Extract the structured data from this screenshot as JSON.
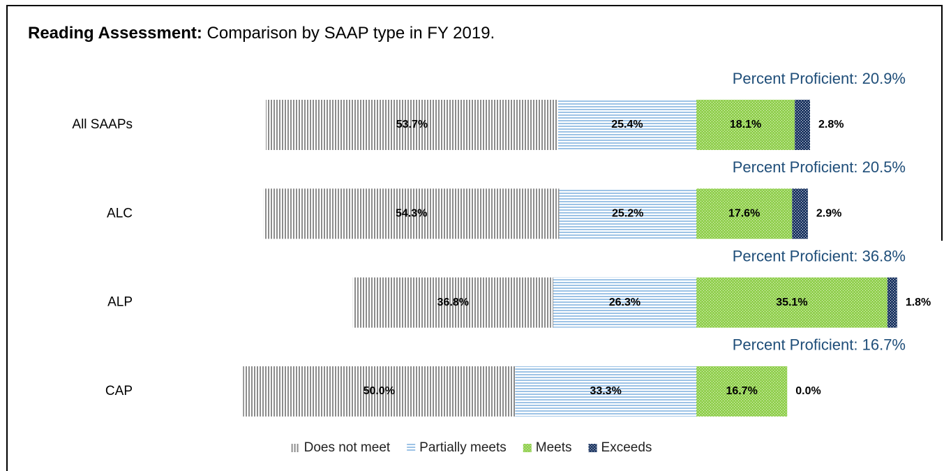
{
  "chart_data": {
    "type": "diverging_bar",
    "title": "Reading Assessment:",
    "subtitle": "Comparison by SAAP type in FY 2019.",
    "categories": [
      "All SAAPs",
      "ALC",
      "ALP",
      "CAP"
    ],
    "annotations": [
      "Percent Proficient: 20.9%",
      "Percent Proficient: 20.5%",
      "Percent Proficient: 36.8%",
      "Percent Proficient: 16.7%"
    ],
    "series": [
      {
        "name": "Does not meet",
        "color": "#8c8c8c",
        "side": "negative",
        "values": [
          53.7,
          54.3,
          36.8,
          50.0
        ],
        "value_labels": [
          "53.7%",
          "54.3%",
          "36.8%",
          "50.0%"
        ]
      },
      {
        "name": "Partially meets",
        "color": "#9dc3e6",
        "side": "negative",
        "values": [
          25.4,
          25.2,
          26.3,
          33.3
        ],
        "value_labels": [
          "25.4%",
          "25.2%",
          "26.3%",
          "33.3%"
        ]
      },
      {
        "name": "Meets",
        "color": "#92d050",
        "side": "positive",
        "values": [
          18.1,
          17.6,
          35.1,
          16.7
        ],
        "value_labels": [
          "18.1%",
          "17.6%",
          "35.1%",
          "16.7%"
        ]
      },
      {
        "name": "Exceeds",
        "color": "#1f3864",
        "side": "positive",
        "values": [
          2.8,
          2.9,
          1.8,
          0.0
        ],
        "value_labels": [
          "2.8%",
          "2.9%",
          "1.8%",
          "0.0%"
        ]
      }
    ],
    "legend": "bottom"
  }
}
